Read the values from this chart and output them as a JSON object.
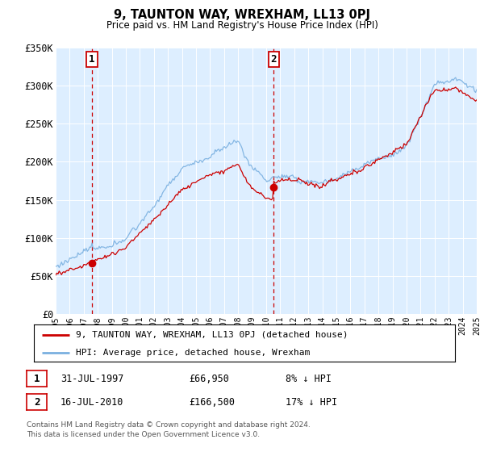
{
  "title": "9, TAUNTON WAY, WREXHAM, LL13 0PJ",
  "subtitle": "Price paid vs. HM Land Registry's House Price Index (HPI)",
  "ylim": [
    0,
    350000
  ],
  "ytick_labels": [
    "£0",
    "£50K",
    "£100K",
    "£150K",
    "£200K",
    "£250K",
    "£300K",
    "£350K"
  ],
  "ytick_values": [
    0,
    50000,
    100000,
    150000,
    200000,
    250000,
    300000,
    350000
  ],
  "background_color": "#ffffff",
  "plot_bg_color": "#ddeeff",
  "grid_color": "#ffffff",
  "hpi_color": "#7ab0e0",
  "price_color": "#cc0000",
  "sale1_date": 1997.58,
  "sale1_price": 66950,
  "sale2_date": 2010.54,
  "sale2_price": 166500,
  "legend_entry1": "9, TAUNTON WAY, WREXHAM, LL13 0PJ (detached house)",
  "legend_entry2": "HPI: Average price, detached house, Wrexham",
  "table_row1_num": "1",
  "table_row1_date": "31-JUL-1997",
  "table_row1_price": "£66,950",
  "table_row1_hpi": "8% ↓ HPI",
  "table_row2_num": "2",
  "table_row2_date": "16-JUL-2010",
  "table_row2_price": "£166,500",
  "table_row2_hpi": "17% ↓ HPI",
  "footer": "Contains HM Land Registry data © Crown copyright and database right 2024.\nThis data is licensed under the Open Government Licence v3.0.",
  "xmin": 1995,
  "xmax": 2025
}
